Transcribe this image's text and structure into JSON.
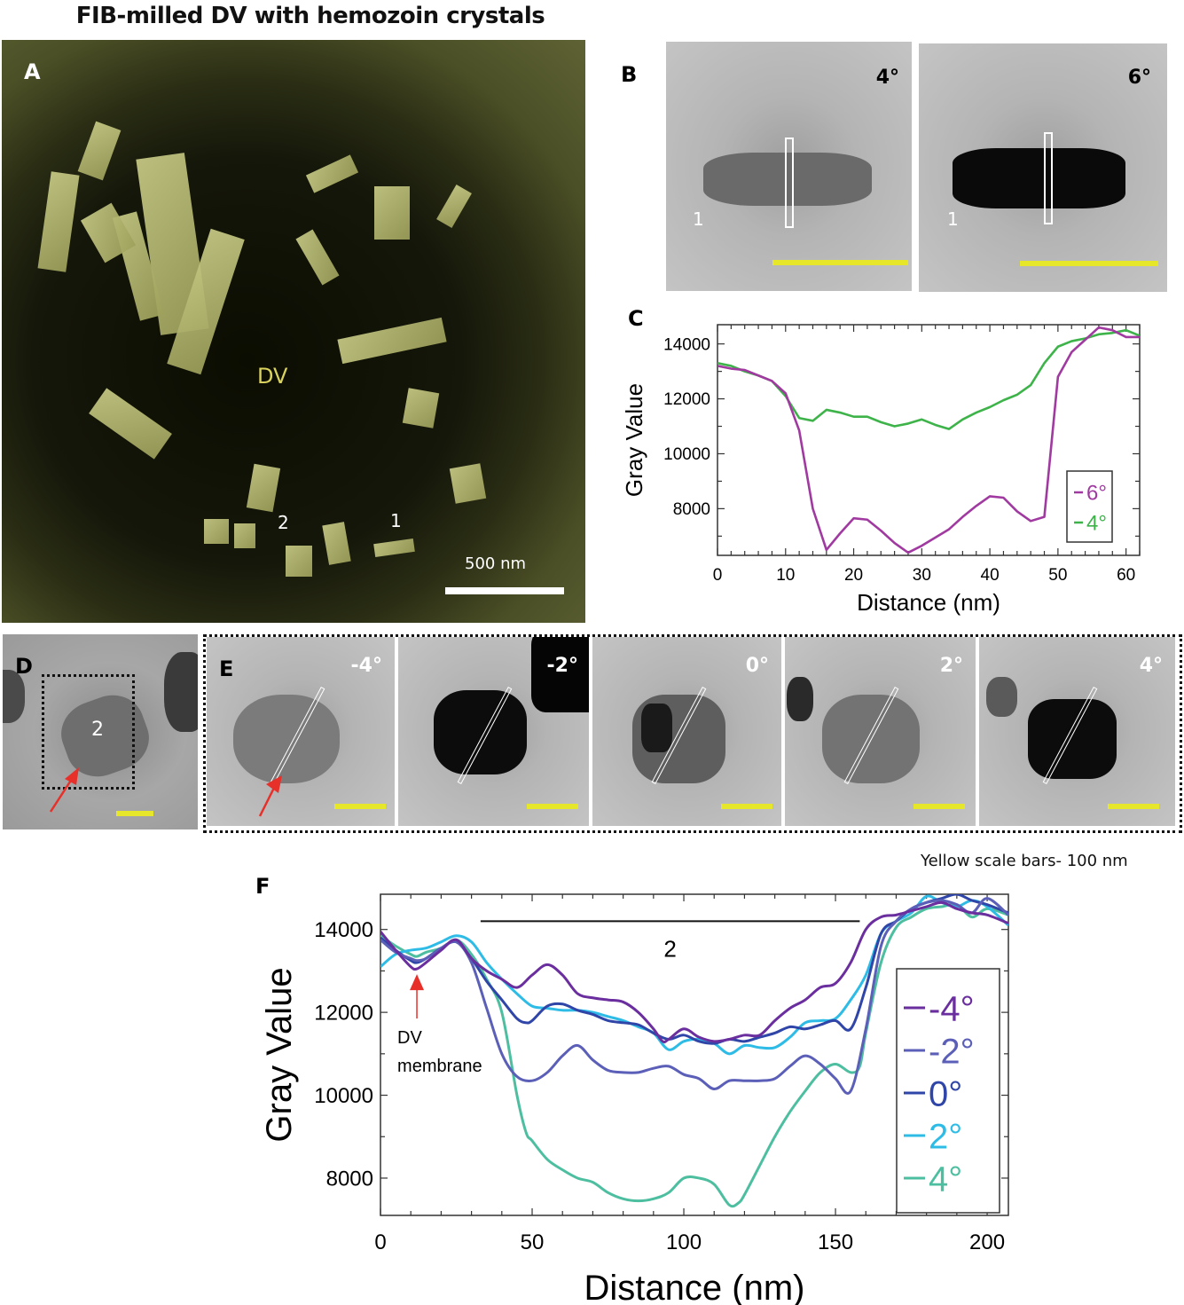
{
  "figure": {
    "title": "FIB-milled DV with hemozoin crystals",
    "scale_note": "Yellow scale bars- 100 nm"
  },
  "panels": {
    "A": {
      "letter": "A",
      "dv_label": "DV",
      "crystal_labels": [
        "2",
        "1"
      ],
      "scale_bar_label": "500 nm"
    },
    "B": {
      "letter": "B",
      "images": [
        {
          "angle": "4°",
          "crystal_label": "1"
        },
        {
          "angle": "6°",
          "crystal_label": "1"
        }
      ]
    },
    "D": {
      "letter": "D",
      "crystal_label": "2"
    },
    "E": {
      "letter": "E",
      "images": [
        {
          "angle": "-4°"
        },
        {
          "angle": "-2°"
        },
        {
          "angle": "0°"
        },
        {
          "angle": "2°"
        },
        {
          "angle": "4°"
        }
      ]
    }
  },
  "chart_data": [
    {
      "panel": "C",
      "type": "line",
      "title": "",
      "xlabel": "Distance (nm)",
      "ylabel": "Gray Value",
      "xlim": [
        0,
        62
      ],
      "ylim": [
        6300,
        14700
      ],
      "xticks": [
        0,
        10,
        20,
        30,
        40,
        50,
        60
      ],
      "yticks": [
        8000,
        10000,
        12000,
        14000
      ],
      "grid": false,
      "legend_position": "lower right",
      "series": [
        {
          "name": "6°",
          "color": "#a03aa0",
          "x": [
            0,
            2,
            4,
            6,
            8,
            10,
            12,
            14,
            16,
            18,
            20,
            22,
            24,
            26,
            28,
            30,
            32,
            34,
            36,
            38,
            40,
            42,
            44,
            46,
            48,
            50,
            52,
            54,
            56,
            58,
            60,
            62
          ],
          "y": [
            13200,
            13100,
            13050,
            12850,
            12650,
            12200,
            10850,
            8000,
            6500,
            7100,
            7650,
            7600,
            7200,
            6750,
            6400,
            6650,
            6950,
            7250,
            7700,
            8100,
            8450,
            8400,
            7900,
            7550,
            7700,
            12800,
            13700,
            14150,
            14600,
            14500,
            14250,
            14250
          ]
        },
        {
          "name": "4°",
          "color": "#3db34a",
          "x": [
            0,
            2,
            4,
            6,
            8,
            10,
            12,
            14,
            16,
            18,
            20,
            22,
            24,
            26,
            28,
            30,
            32,
            34,
            36,
            38,
            40,
            42,
            44,
            46,
            48,
            50,
            52,
            54,
            56,
            58,
            60,
            62
          ],
          "y": [
            13300,
            13200,
            13000,
            12850,
            12650,
            12100,
            11300,
            11200,
            11600,
            11500,
            11350,
            11350,
            11150,
            11000,
            11100,
            11250,
            11050,
            10900,
            11250,
            11500,
            11700,
            11950,
            12150,
            12500,
            13300,
            13900,
            14100,
            14200,
            14350,
            14400,
            14500,
            14300
          ]
        }
      ]
    },
    {
      "panel": "F",
      "type": "line",
      "title": "",
      "xlabel": "Distance (nm)",
      "ylabel": "Gray Value",
      "xlim": [
        0,
        207
      ],
      "ylim": [
        7100,
        14850
      ],
      "xticks": [
        0,
        50,
        100,
        150,
        200
      ],
      "yticks": [
        8000,
        10000,
        12000,
        14000
      ],
      "grid": false,
      "legend_position": "right",
      "annotations": [
        {
          "text": "2",
          "type": "bracket",
          "x_range": [
            33,
            158
          ],
          "y": 14200
        },
        {
          "text": "DV membrane",
          "type": "arrow",
          "x": 12,
          "y": 13050,
          "color": "#e8302a"
        }
      ],
      "series": [
        {
          "name": "-4°",
          "color": "#6a2e9e",
          "x": [
            0,
            5,
            10,
            12,
            15,
            20,
            25,
            30,
            35,
            40,
            45,
            50,
            55,
            60,
            65,
            70,
            75,
            80,
            85,
            90,
            93,
            95,
            100,
            105,
            110,
            115,
            120,
            125,
            130,
            135,
            140,
            145,
            150,
            155,
            160,
            165,
            170,
            175,
            180,
            185,
            190,
            195,
            200,
            207
          ],
          "y": [
            13950,
            13500,
            13100,
            13050,
            13200,
            13500,
            13750,
            13300,
            13000,
            12800,
            12600,
            12900,
            13150,
            12900,
            12450,
            12350,
            12300,
            12250,
            12000,
            11600,
            11300,
            11350,
            11600,
            11400,
            11300,
            11350,
            11450,
            11450,
            11800,
            12100,
            12300,
            12600,
            12700,
            13200,
            14000,
            14300,
            14350,
            14450,
            14550,
            14650,
            14500,
            14400,
            14350,
            14150
          ]
        },
        {
          "name": "-2°",
          "color": "#5b5fb8",
          "x": [
            0,
            5,
            10,
            12,
            15,
            20,
            25,
            30,
            35,
            40,
            45,
            50,
            55,
            60,
            65,
            70,
            75,
            80,
            85,
            90,
            95,
            100,
            105,
            110,
            115,
            120,
            125,
            130,
            135,
            140,
            145,
            150,
            155,
            160,
            165,
            170,
            175,
            180,
            185,
            190,
            195,
            200,
            207
          ],
          "y": [
            13750,
            13450,
            13300,
            13250,
            13300,
            13550,
            13700,
            13200,
            12100,
            11000,
            10450,
            10350,
            10550,
            10950,
            11200,
            10850,
            10600,
            10550,
            10550,
            10650,
            10700,
            10500,
            10400,
            10150,
            10350,
            10350,
            10350,
            10400,
            10700,
            10950,
            10750,
            10400,
            10100,
            11600,
            13600,
            14200,
            14500,
            14650,
            14700,
            14600,
            14400,
            14750,
            14350
          ]
        },
        {
          "name": "0°",
          "color": "#2f45a8",
          "x": [
            0,
            5,
            10,
            12,
            15,
            20,
            25,
            30,
            35,
            40,
            45,
            48,
            50,
            55,
            60,
            65,
            70,
            75,
            80,
            85,
            90,
            95,
            100,
            105,
            110,
            115,
            120,
            125,
            130,
            135,
            140,
            145,
            150,
            155,
            160,
            165,
            170,
            175,
            180,
            185,
            190,
            195,
            200,
            207
          ],
          "y": [
            13800,
            13500,
            13250,
            13200,
            13300,
            13550,
            13700,
            13300,
            12750,
            12300,
            11850,
            11750,
            11800,
            12150,
            12200,
            12050,
            11950,
            11800,
            11750,
            11700,
            11500,
            11350,
            11450,
            11300,
            11250,
            11350,
            11300,
            11400,
            11500,
            11650,
            11600,
            11700,
            11800,
            11600,
            12600,
            13900,
            14200,
            14500,
            14650,
            14750,
            14850,
            14700,
            14600,
            14400
          ]
        },
        {
          "name": "2°",
          "color": "#2ebce6",
          "x": [
            0,
            5,
            10,
            15,
            20,
            25,
            30,
            35,
            40,
            45,
            50,
            55,
            60,
            65,
            70,
            75,
            80,
            85,
            90,
            95,
            100,
            105,
            110,
            115,
            120,
            125,
            130,
            135,
            140,
            145,
            150,
            155,
            160,
            165,
            170,
            175,
            180,
            185,
            190,
            195,
            200,
            207
          ],
          "y": [
            13100,
            13400,
            13500,
            13550,
            13700,
            13850,
            13700,
            13200,
            12800,
            12450,
            12150,
            12100,
            12050,
            12050,
            12000,
            11900,
            11800,
            11650,
            11500,
            11100,
            11300,
            11350,
            11250,
            11000,
            11200,
            11150,
            11150,
            11400,
            11750,
            11800,
            11850,
            12300,
            12900,
            13900,
            14200,
            14400,
            14800,
            14650,
            14550,
            14700,
            14550,
            14100
          ]
        },
        {
          "name": "4°",
          "color": "#4dbfa0",
          "x": [
            0,
            5,
            10,
            12,
            15,
            20,
            25,
            30,
            35,
            40,
            45,
            48,
            50,
            55,
            60,
            65,
            70,
            75,
            80,
            85,
            90,
            95,
            100,
            105,
            110,
            115,
            118,
            120,
            125,
            130,
            135,
            140,
            145,
            150,
            155,
            158,
            160,
            165,
            170,
            175,
            180,
            185,
            190,
            195,
            200,
            207
          ],
          "y": [
            13850,
            13600,
            13400,
            13350,
            13450,
            13550,
            13750,
            13400,
            12800,
            12000,
            10000,
            9100,
            8900,
            8450,
            8200,
            8000,
            7900,
            7650,
            7500,
            7450,
            7500,
            7650,
            8000,
            8000,
            7850,
            7350,
            7400,
            7600,
            8300,
            9000,
            9600,
            10100,
            10550,
            10750,
            10550,
            10700,
            11500,
            13200,
            14050,
            14300,
            14500,
            14550,
            14600,
            14300,
            14500,
            14350
          ]
        }
      ]
    }
  ]
}
